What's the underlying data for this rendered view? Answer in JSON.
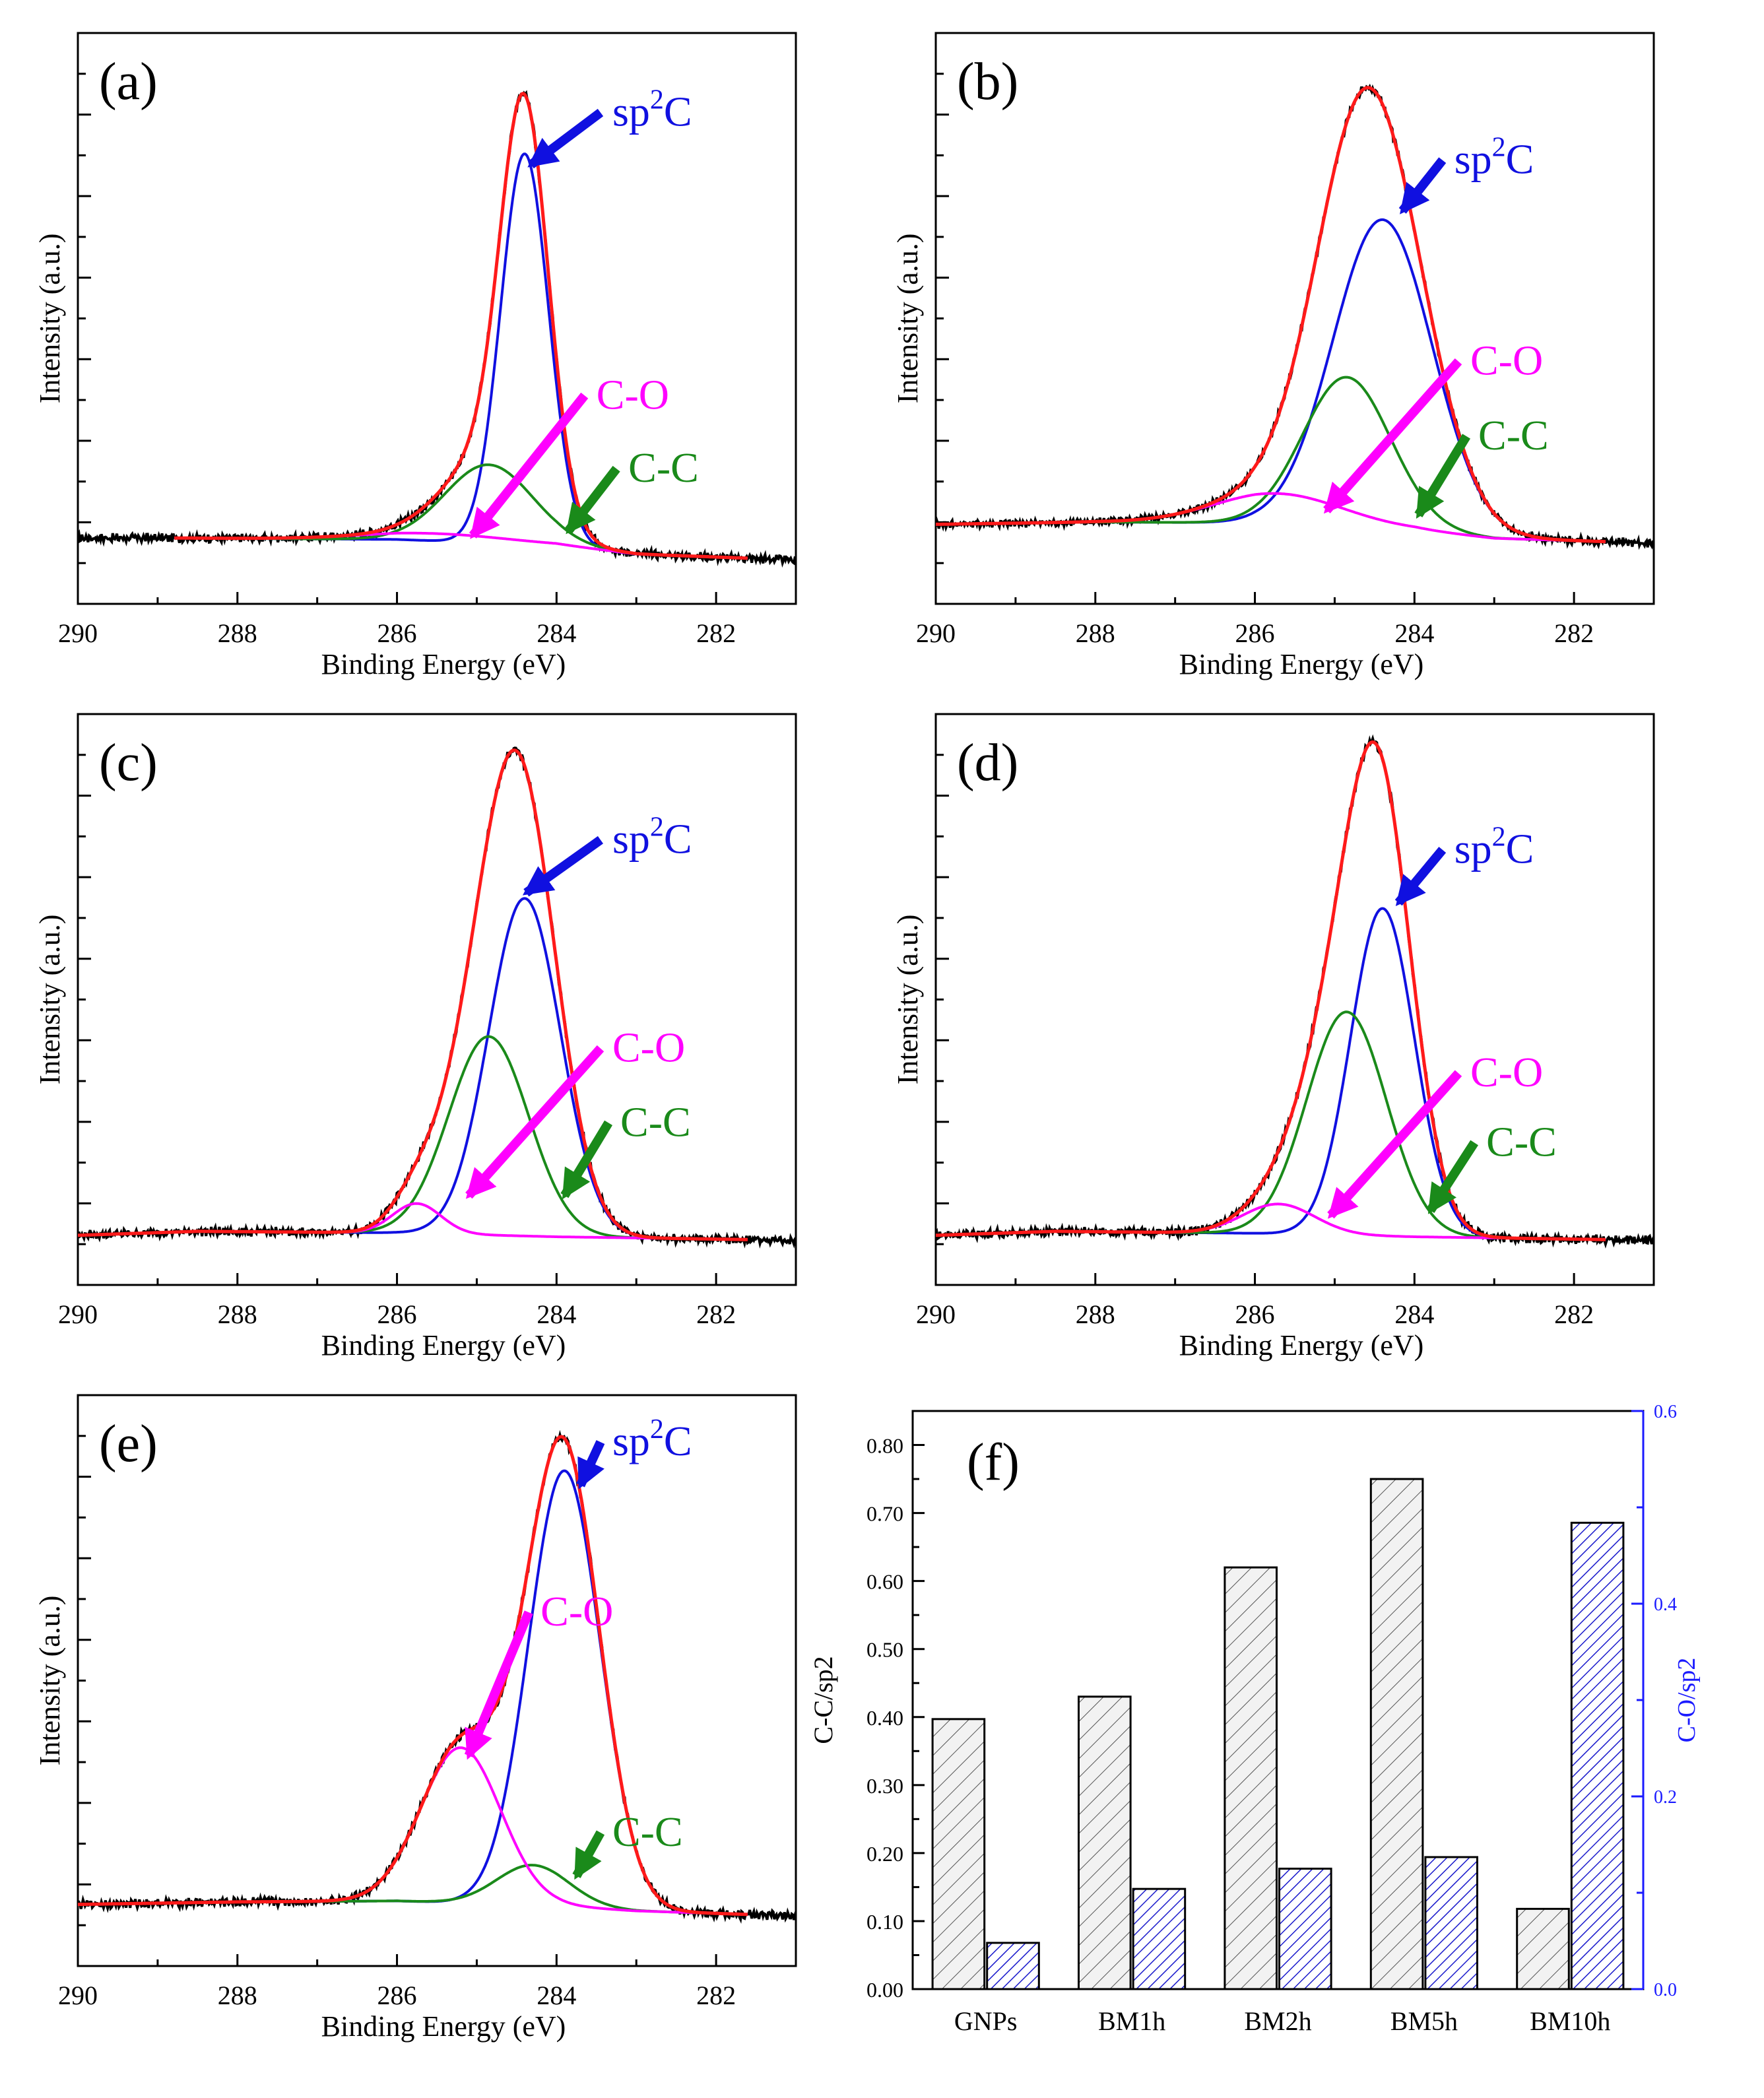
{
  "chart_data": [
    {
      "type": "line",
      "panel_label": "(a)",
      "xlabel": "Binding Energy (eV)",
      "ylabel": "Intensity (a.u.)",
      "xlim": [
        290,
        281
      ],
      "x_ticks": [
        "290",
        "288",
        "286",
        "284",
        "282"
      ],
      "ylim": [
        -0.12,
        1.05
      ],
      "baseline": [
        [
          288.8,
          0.015
        ],
        [
          286,
          0.012
        ],
        [
          284,
          0.0
        ],
        [
          283,
          -0.018
        ],
        [
          281,
          -0.03
        ]
      ],
      "peaks": [
        {
          "name": "sp2C",
          "color": "#1010e0",
          "center": 284.4,
          "height": 0.8,
          "width": 0.3
        },
        {
          "name": "C-C",
          "color": "#1a8a1a",
          "center": 284.85,
          "height": 0.16,
          "width": 0.55
        },
        {
          "name": "C-O",
          "color": "#ff00ff",
          "center": 285.5,
          "height": 0.015,
          "width": 0.9
        }
      ],
      "annotations": [
        {
          "text": "sp",
          "sup": "2",
          "tail": "C",
          "color": "#1010e0",
          "arrow_to": [
            284.32,
            0.78
          ],
          "text_at": [
            283.3,
            0.86
          ]
        },
        {
          "text": "C-O",
          "color": "#ff00ff",
          "arrow_to": [
            285.05,
            0.02
          ],
          "text_at": [
            283.5,
            0.28
          ]
        },
        {
          "text": "C-C",
          "color": "#1a8a1a",
          "arrow_to": [
            283.85,
            0.03
          ],
          "text_at": [
            283.1,
            0.13
          ]
        }
      ]
    },
    {
      "type": "line",
      "panel_label": "(b)",
      "xlabel": "Binding Energy (eV)",
      "ylabel": "Intensity (a.u.)",
      "xlim": [
        290,
        281
      ],
      "x_ticks": [
        "290",
        "288",
        "286",
        "284",
        "282"
      ],
      "ylim": [
        -0.17,
        1.05
      ],
      "baseline": [
        [
          290,
          0.0
        ],
        [
          288,
          0.005
        ],
        [
          286,
          0.003
        ],
        [
          284,
          -0.012
        ],
        [
          283,
          -0.03
        ],
        [
          281,
          -0.04
        ]
      ],
      "peaks": [
        {
          "name": "sp2C",
          "color": "#1010e0",
          "center": 284.4,
          "height": 0.66,
          "width": 0.62
        },
        {
          "name": "C-C",
          "color": "#1a8a1a",
          "center": 284.85,
          "height": 0.32,
          "width": 0.55
        },
        {
          "name": "C-O",
          "color": "#ff00ff",
          "center": 285.7,
          "height": 0.065,
          "width": 0.8
        }
      ],
      "annotations": [
        {
          "text": "sp",
          "sup": "2",
          "tail": "C",
          "color": "#1010e0",
          "arrow_to": [
            284.15,
            0.67
          ],
          "text_at": [
            283.5,
            0.75
          ]
        },
        {
          "text": "C-O",
          "color": "#ff00ff",
          "arrow_to": [
            285.1,
            0.03
          ],
          "text_at": [
            283.3,
            0.32
          ]
        },
        {
          "text": "C-C",
          "color": "#1a8a1a",
          "arrow_to": [
            283.95,
            0.02
          ],
          "text_at": [
            283.2,
            0.16
          ]
        }
      ]
    },
    {
      "type": "line",
      "panel_label": "(c)",
      "xlabel": "Binding Energy (eV)",
      "ylabel": "Intensity (a.u.)",
      "xlim": [
        290,
        281
      ],
      "x_ticks": [
        "290",
        "288",
        "286",
        "284",
        "282"
      ],
      "ylim": [
        -0.1,
        1.05
      ],
      "baseline": [
        [
          290,
          0.0
        ],
        [
          288.5,
          0.008
        ],
        [
          286,
          0.005
        ],
        [
          284,
          -0.003
        ],
        [
          281,
          -0.01
        ]
      ],
      "peaks": [
        {
          "name": "sp2C",
          "color": "#1010e0",
          "center": 284.4,
          "height": 0.68,
          "width": 0.45
        },
        {
          "name": "C-C",
          "color": "#1a8a1a",
          "center": 284.85,
          "height": 0.4,
          "width": 0.5
        },
        {
          "name": "C-O",
          "color": "#ff00ff",
          "center": 285.75,
          "height": 0.06,
          "width": 0.3
        }
      ],
      "annotations": [
        {
          "text": "sp",
          "sup": "2",
          "tail": "C",
          "color": "#1010e0",
          "arrow_to": [
            284.38,
            0.69
          ],
          "text_at": [
            283.3,
            0.77
          ]
        },
        {
          "text": "C-O",
          "color": "#ff00ff",
          "arrow_to": [
            285.1,
            0.08
          ],
          "text_at": [
            283.3,
            0.35
          ]
        },
        {
          "text": "C-C",
          "color": "#1a8a1a",
          "arrow_to": [
            283.9,
            0.08
          ],
          "text_at": [
            283.2,
            0.2
          ]
        }
      ]
    },
    {
      "type": "line",
      "panel_label": "(d)",
      "xlabel": "Binding Energy (eV)",
      "ylabel": "Intensity (a.u.)",
      "xlim": [
        290,
        281
      ],
      "x_ticks": [
        "290",
        "288",
        "286",
        "284",
        "282"
      ],
      "ylim": [
        -0.1,
        1.05
      ],
      "baseline": [
        [
          290,
          0.0
        ],
        [
          288.5,
          0.008
        ],
        [
          286,
          0.004
        ],
        [
          284,
          -0.003
        ],
        [
          281,
          -0.01
        ]
      ],
      "peaks": [
        {
          "name": "sp2C",
          "color": "#1010e0",
          "center": 284.4,
          "height": 0.66,
          "width": 0.4
        },
        {
          "name": "C-C",
          "color": "#1a8a1a",
          "center": 284.85,
          "height": 0.45,
          "width": 0.5
        },
        {
          "name": "C-O",
          "color": "#ff00ff",
          "center": 285.7,
          "height": 0.06,
          "width": 0.45
        }
      ],
      "annotations": [
        {
          "text": "sp",
          "sup": "2",
          "tail": "C",
          "color": "#1010e0",
          "arrow_to": [
            284.2,
            0.67
          ],
          "text_at": [
            283.5,
            0.75
          ]
        },
        {
          "text": "C-O",
          "color": "#ff00ff",
          "arrow_to": [
            285.05,
            0.04
          ],
          "text_at": [
            283.3,
            0.3
          ]
        },
        {
          "text": "C-C",
          "color": "#1a8a1a",
          "arrow_to": [
            283.8,
            0.05
          ],
          "text_at": [
            283.1,
            0.16
          ]
        }
      ]
    },
    {
      "type": "line",
      "panel_label": "(e)",
      "xlabel": "Binding Energy (eV)",
      "ylabel": "Intensity (a.u.)",
      "xlim": [
        290,
        281
      ],
      "x_ticks": [
        "290",
        "288",
        "286",
        "284",
        "282"
      ],
      "ylim": [
        -0.12,
        1.02
      ],
      "baseline": [
        [
          290,
          0.003
        ],
        [
          288,
          0.008
        ],
        [
          286,
          0.01
        ],
        [
          284,
          0.0
        ],
        [
          283,
          -0.01
        ],
        [
          281,
          -0.02
        ]
      ],
      "peaks": [
        {
          "name": "sp2C",
          "color": "#1010e0",
          "center": 283.9,
          "height": 0.87,
          "width": 0.45
        },
        {
          "name": "C-C",
          "color": "#1a8a1a",
          "center": 284.3,
          "height": 0.08,
          "width": 0.45
        },
        {
          "name": "C-O",
          "color": "#ff00ff",
          "center": 285.2,
          "height": 0.31,
          "width": 0.5
        }
      ],
      "annotations": [
        {
          "text": "sp",
          "sup": "2",
          "tail": "C",
          "color": "#1010e0",
          "arrow_to": [
            283.7,
            0.84
          ],
          "text_at": [
            283.3,
            0.9
          ]
        },
        {
          "text": "C-O",
          "color": "#ff00ff",
          "arrow_to": [
            285.1,
            0.3
          ],
          "text_at": [
            284.2,
            0.56
          ]
        },
        {
          "text": "C-C",
          "color": "#1a8a1a",
          "arrow_to": [
            283.75,
            0.06
          ],
          "text_at": [
            283.3,
            0.12
          ]
        }
      ]
    },
    {
      "type": "bar",
      "panel_label": "(f)",
      "categories": [
        "GNPs",
        "BM1h",
        "BM2h",
        "BM5h",
        "BM10h"
      ],
      "ylabel": "C-C/sp2",
      "ylabel_right": "C-O/sp2",
      "ylim": [
        0,
        0.85
      ],
      "ylim_right": [
        0,
        0.6
      ],
      "y_ticks": [
        "0.00",
        "0.10",
        "0.20",
        "0.30",
        "0.40",
        "0.50",
        "0.60",
        "0.70",
        "0.80"
      ],
      "y_ticks_right": [
        "0.0",
        "0.2",
        "0.4",
        "0.6"
      ],
      "series": [
        {
          "name": "C-C/sp2",
          "axis": "left",
          "color": "#555555",
          "values": [
            0.397,
            0.43,
            0.62,
            0.75,
            0.118
          ]
        },
        {
          "name": "C-O/sp2",
          "axis": "right",
          "color": "#1a1acc",
          "values": [
            0.048,
            0.104,
            0.125,
            0.137,
            0.484
          ]
        }
      ]
    }
  ]
}
